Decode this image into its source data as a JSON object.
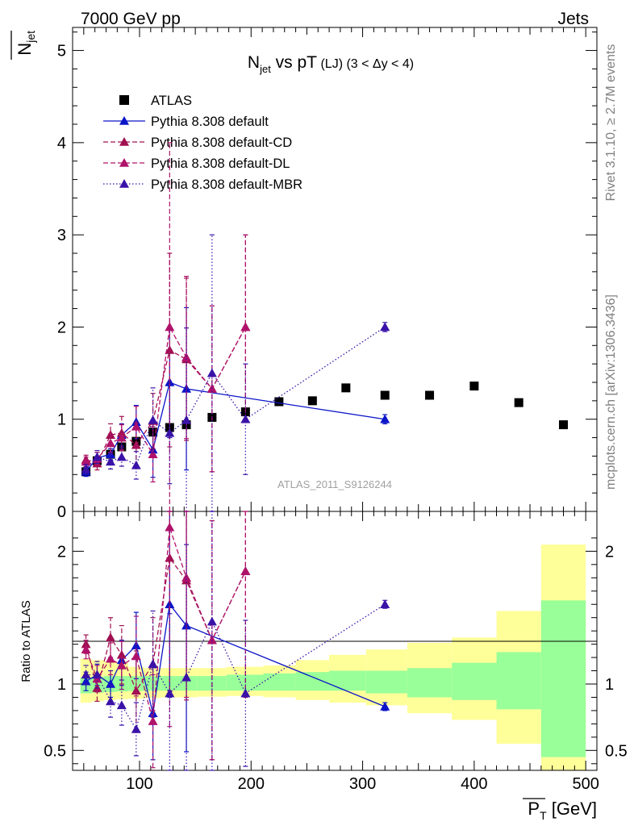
{
  "header": {
    "left_label": "7000 GeV pp",
    "right_label": "Jets"
  },
  "side_labels": {
    "rivet": "Rivet 3.1.10, ≥ 2.7M events",
    "mcplots": "mcplots.cern.ch [arXiv:1306.3436]"
  },
  "chart_data": [
    {
      "type": "line",
      "title_main": "N",
      "title_sub": "jet",
      "title_rest": " vs pT",
      "title_small": " (LJ) (3 < Δy < 4)",
      "ylabel_main": "N",
      "ylabel_sub": "jet",
      "xlabel_main": "P",
      "xlabel_sub": "T",
      "xlabel_unit": " [GeV]",
      "watermark": "ATLAS_2011_S9126244",
      "xlim": [
        40,
        510
      ],
      "ylim": [
        0,
        5.25
      ],
      "y_ticks": [
        "0",
        "1",
        "2",
        "3",
        "4",
        "5"
      ],
      "x_ticks": [
        "100",
        "200",
        "300",
        "400",
        "500"
      ],
      "legend_position": "top-left",
      "legend": [
        {
          "label": "ATLAS",
          "marker": "square",
          "color": "#000000"
        },
        {
          "label": "Pythia 8.308 default",
          "marker": "triangle",
          "color": "#0a14c8",
          "dash": "solid"
        },
        {
          "label": "Pythia 8.308 default-CD",
          "marker": "triangle",
          "color": "#a01050",
          "dash": "dashed"
        },
        {
          "label": "Pythia 8.308 default-DL",
          "marker": "triangle",
          "color": "#b0126a",
          "dash": "dashed"
        },
        {
          "label": "Pythia 8.308 default-MBR",
          "marker": "triangle",
          "color": "#3a12a8",
          "dash": "dotted"
        }
      ],
      "data": {
        "x": [
          52,
          62,
          74,
          84,
          97,
          112,
          127,
          142,
          165,
          195,
          225,
          255,
          285,
          320,
          360,
          400,
          440,
          480
        ],
        "y": [
          0.43,
          0.55,
          0.62,
          0.7,
          0.76,
          0.86,
          0.91,
          0.94,
          1.02,
          1.08,
          1.19,
          1.2,
          1.34,
          1.26,
          1.26,
          1.36,
          1.18,
          0.94
        ]
      },
      "series": [
        {
          "name": "Pythia 8.308 default",
          "x": [
            52,
            62,
            74,
            84,
            97,
            112,
            127,
            142,
            320
          ],
          "y": [
            0.43,
            0.58,
            0.62,
            0.83,
            0.97,
            0.67,
            1.4,
            1.33,
            1.0
          ],
          "err": [
            0.05,
            0.06,
            0.06,
            0.12,
            0.18,
            0.3,
            0.6,
            0.88,
            0.05
          ]
        },
        {
          "name": "Pythia 8.308 default-CD",
          "x": [
            52,
            62,
            74,
            84,
            97,
            112,
            127,
            142,
            165,
            195
          ],
          "y": [
            0.56,
            0.52,
            0.83,
            0.85,
            0.72,
            0.98,
            1.75,
            1.65,
            1.33,
            2.0
          ],
          "err": [
            0.05,
            0.07,
            0.12,
            0.18,
            0.24,
            0.3,
            1.05,
            0.88,
            0.9,
            1.0
          ]
        },
        {
          "name": "Pythia 8.308 default-DL",
          "x": [
            52,
            62,
            74,
            84,
            97,
            112,
            127,
            142,
            165,
            195
          ],
          "y": [
            0.54,
            0.57,
            0.74,
            0.8,
            0.92,
            0.62,
            2.0,
            1.67,
            1.33,
            2.0
          ],
          "err": [
            0.05,
            0.07,
            0.1,
            0.14,
            0.22,
            0.3,
            2.0,
            0.88,
            0.9,
            1.0
          ]
        },
        {
          "name": "Pythia 8.308 default-MBR",
          "x": [
            52,
            62,
            74,
            84,
            97,
            112,
            127,
            142,
            165,
            195,
            320
          ],
          "y": [
            0.46,
            0.59,
            0.54,
            0.59,
            0.5,
            0.99,
            0.85,
            0.99,
            1.5,
            1.0,
            2.0
          ],
          "err": [
            0.05,
            0.07,
            0.08,
            0.1,
            0.15,
            0.35,
            0.55,
            1.0,
            1.5,
            0.6,
            0.05
          ]
        }
      ]
    },
    {
      "type": "line",
      "ylabel": "Ratio to ATLAS",
      "xlim": [
        40,
        510
      ],
      "ylim": [
        0.35,
        2.3
      ],
      "y_ticks": [
        "0.5",
        "1",
        "2"
      ],
      "x_ticks": [
        "100",
        "200",
        "300",
        "400",
        "500"
      ],
      "uncertainty_bands": {
        "edges": [
          47,
          57,
          68,
          79,
          90,
          104,
          119,
          134,
          152,
          178,
          211,
          240,
          270,
          303,
          340,
          380,
          420,
          460,
          500
        ],
        "inner_low": [
          0.93,
          0.935,
          0.94,
          0.945,
          0.948,
          0.95,
          0.95,
          0.95,
          0.95,
          0.95,
          0.95,
          0.95,
          0.95,
          0.93,
          0.9,
          0.88,
          0.81,
          0.45
        ],
        "inner_high": [
          1.05,
          1.055,
          1.06,
          1.06,
          1.06,
          1.06,
          1.06,
          1.06,
          1.06,
          1.07,
          1.08,
          1.09,
          1.1,
          1.1,
          1.12,
          1.16,
          1.24,
          1.63
        ],
        "outer_low": [
          0.86,
          0.87,
          0.88,
          0.885,
          0.89,
          0.895,
          0.9,
          0.9,
          0.905,
          0.91,
          0.9,
          0.88,
          0.86,
          0.84,
          0.78,
          0.73,
          0.55,
          0.35
        ],
        "outer_high": [
          1.19,
          1.18,
          1.17,
          1.16,
          1.13,
          1.12,
          1.12,
          1.12,
          1.12,
          1.13,
          1.14,
          1.18,
          1.22,
          1.26,
          1.31,
          1.35,
          1.55,
          2.05
        ]
      },
      "series": [
        {
          "name": "Pythia 8.308 default",
          "x": [
            52,
            62,
            74,
            84,
            97,
            112,
            127,
            142,
            320
          ],
          "y": [
            1.02,
            1.07,
            1.0,
            1.18,
            1.29,
            0.78,
            1.6,
            1.44,
            0.83
          ],
          "err": [
            0.07,
            0.08,
            0.1,
            0.15,
            0.25,
            0.35,
            0.7,
            0.95,
            0.03
          ]
        },
        {
          "name": "Pythia 8.308 default-CD",
          "x": [
            52,
            62,
            74,
            84,
            97,
            112,
            127,
            142,
            165,
            195
          ],
          "y": [
            1.3,
            0.97,
            1.35,
            1.22,
            0.95,
            1.15,
            1.95,
            1.78,
            1.33,
            1.85
          ],
          "err": [
            0.07,
            0.1,
            0.15,
            0.22,
            0.3,
            0.35,
            1.0,
            0.9,
            0.9,
            0.95
          ]
        },
        {
          "name": "Pythia 8.308 default-DL",
          "x": [
            52,
            62,
            74,
            84,
            97,
            112,
            127,
            142,
            165,
            195
          ],
          "y": [
            1.26,
            1.04,
            1.19,
            1.14,
            1.21,
            0.72,
            2.18,
            1.8,
            1.33,
            1.85
          ],
          "err": [
            0.07,
            0.1,
            0.12,
            0.18,
            0.3,
            0.35,
            1.5,
            0.9,
            0.9,
            0.95
          ]
        },
        {
          "name": "Pythia 8.308 default-MBR",
          "x": [
            52,
            62,
            74,
            84,
            97,
            112,
            127,
            142,
            165,
            195,
            320
          ],
          "y": [
            1.07,
            1.07,
            0.87,
            0.84,
            0.66,
            1.15,
            0.93,
            1.05,
            1.47,
            0.93,
            1.6
          ],
          "err": [
            0.07,
            0.1,
            0.12,
            0.15,
            0.2,
            0.4,
            0.6,
            1.0,
            1.5,
            0.55,
            0.03
          ]
        }
      ]
    }
  ]
}
